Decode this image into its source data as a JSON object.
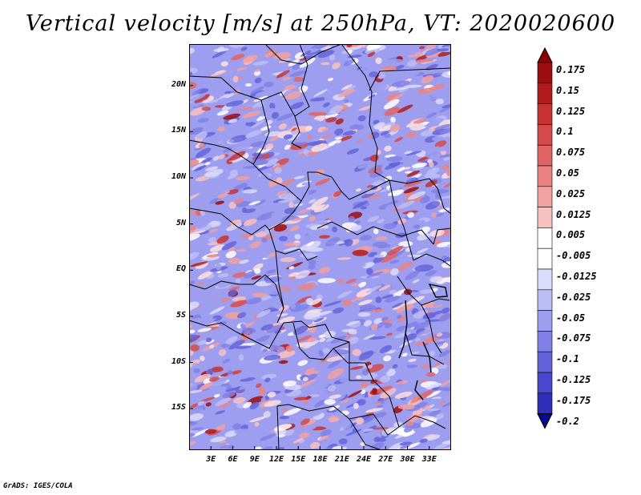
{
  "title": "Vertical velocity [m/s] at 250hPa, VT: 2020020600",
  "credit": "GrADS: IGES/COLA",
  "map": {
    "lon_range": [
      0,
      36
    ],
    "lat_range": [
      -19.5,
      24.5
    ],
    "lat_ticks": [
      {
        "label": "20N",
        "value": 20
      },
      {
        "label": "15N",
        "value": 15
      },
      {
        "label": "10N",
        "value": 10
      },
      {
        "label": "5N",
        "value": 5
      },
      {
        "label": "EQ",
        "value": 0
      },
      {
        "label": "5S",
        "value": -5
      },
      {
        "label": "10S",
        "value": -10
      },
      {
        "label": "15S",
        "value": -15
      }
    ],
    "lon_ticks": [
      {
        "label": "3E",
        "value": 3
      },
      {
        "label": "6E",
        "value": 6
      },
      {
        "label": "9E",
        "value": 9
      },
      {
        "label": "12E",
        "value": 12
      },
      {
        "label": "15E",
        "value": 15
      },
      {
        "label": "18E",
        "value": 18
      },
      {
        "label": "21E",
        "value": 21
      },
      {
        "label": "24E",
        "value": 24
      },
      {
        "label": "27E",
        "value": 27
      },
      {
        "label": "30E",
        "value": 30
      },
      {
        "label": "33E",
        "value": 33
      }
    ]
  },
  "colorbar": {
    "levels": [
      {
        "label": "0.175",
        "color": "#9c0d0d"
      },
      {
        "label": "0.15",
        "color": "#b01c1c"
      },
      {
        "label": "0.125",
        "color": "#c43232"
      },
      {
        "label": "0.1",
        "color": "#d44a4a"
      },
      {
        "label": "0.075",
        "color": "#e06464"
      },
      {
        "label": "0.05",
        "color": "#ea8282"
      },
      {
        "label": "0.025",
        "color": "#f2a0a0"
      },
      {
        "label": "0.0125",
        "color": "#f8c0c0"
      },
      {
        "label": "0.005",
        "color": "#fbe0e0"
      },
      {
        "label": "-0.005",
        "color": "#ffffff"
      },
      {
        "label": "-0.0125",
        "color": "#dcdcfc"
      },
      {
        "label": "-0.025",
        "color": "#bdbdf6"
      },
      {
        "label": "-0.05",
        "color": "#9e9ef0"
      },
      {
        "label": "-0.075",
        "color": "#8080e6"
      },
      {
        "label": "-0.1",
        "color": "#6464da"
      },
      {
        "label": "-0.125",
        "color": "#4848cc"
      },
      {
        "label": "-0.175",
        "color": "#2e2eb8"
      },
      {
        "label": "-0.2",
        "color": "#1a1aa0"
      }
    ],
    "top_arrow_color": "#8b0000",
    "bottom_arrow_color": "#0a0a8c"
  }
}
